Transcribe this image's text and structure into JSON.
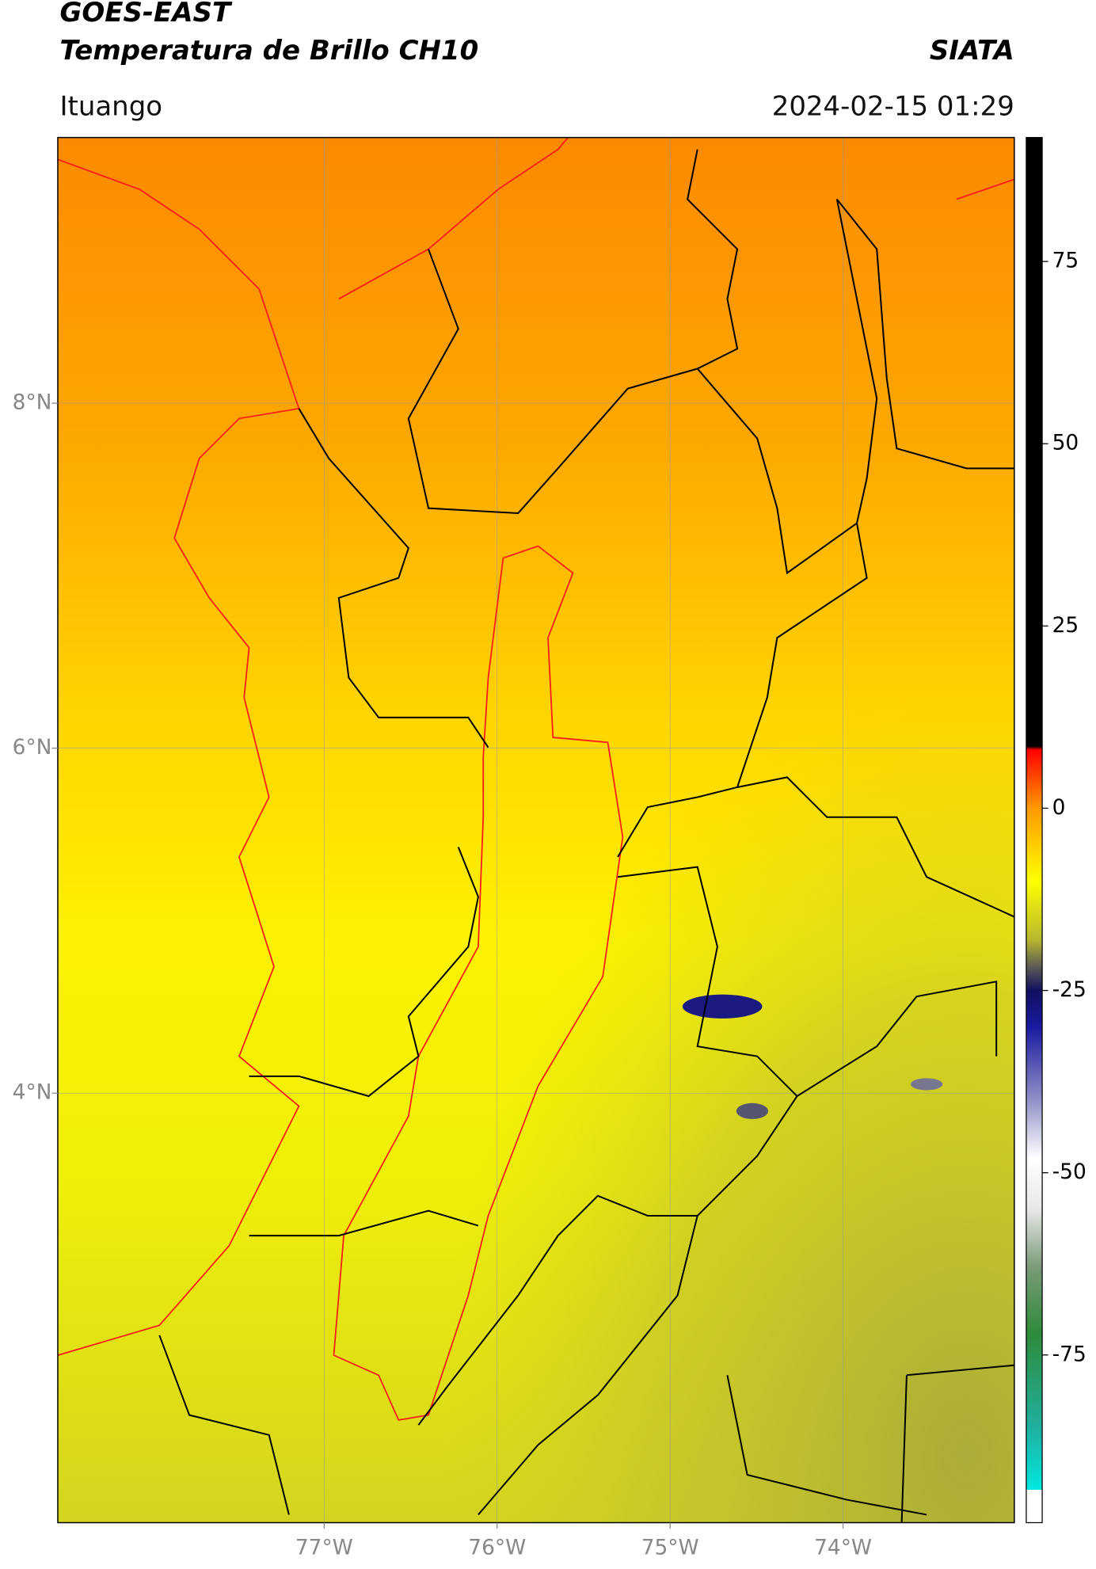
{
  "header": {
    "title": "GOES-EAST",
    "subtitle": "Temperatura de Brillo CH10",
    "source": "SIATA",
    "region": "Ituango",
    "timestamp": "2024-02-15 01:29"
  },
  "map": {
    "type": "map",
    "xlim": [
      -78.54,
      -73.01
    ],
    "ylim": [
      1.51,
      9.54
    ],
    "grid": true,
    "xticks": [
      {
        "value": -77,
        "label": "77°W"
      },
      {
        "value": -76,
        "label": "76°W"
      },
      {
        "value": -75,
        "label": "75°W"
      },
      {
        "value": -74,
        "label": "74°W"
      }
    ],
    "yticks": [
      {
        "value": 4,
        "label": "4°N"
      },
      {
        "value": 6,
        "label": "6°N"
      },
      {
        "value": 8,
        "label": "8°N"
      }
    ]
  },
  "colorbar": {
    "clim": [
      -98,
      92
    ],
    "ticks": [
      -75,
      -50,
      -25,
      0,
      25,
      50,
      75
    ],
    "colorscale": [
      [
        -98,
        "#ffffff"
      ],
      [
        -93.5,
        "#ffffff"
      ],
      [
        -93.5,
        "#00e8e0"
      ],
      [
        -85,
        "#20b0a0"
      ],
      [
        -72,
        "#2e8b3a"
      ],
      [
        -63,
        "#7a9a78"
      ],
      [
        -55,
        "#e8e8e8"
      ],
      [
        -48,
        "#ffffff"
      ],
      [
        -40,
        "#9090c8"
      ],
      [
        -30,
        "#1a1aa0"
      ],
      [
        -25,
        "#101060"
      ],
      [
        -22,
        "#555555"
      ],
      [
        -18,
        "#b8b830"
      ],
      [
        -10,
        "#ffff00"
      ],
      [
        0,
        "#ff9900"
      ],
      [
        8,
        "#ff0000"
      ],
      [
        8.5,
        "#000000"
      ],
      [
        92,
        "#000000"
      ]
    ]
  }
}
